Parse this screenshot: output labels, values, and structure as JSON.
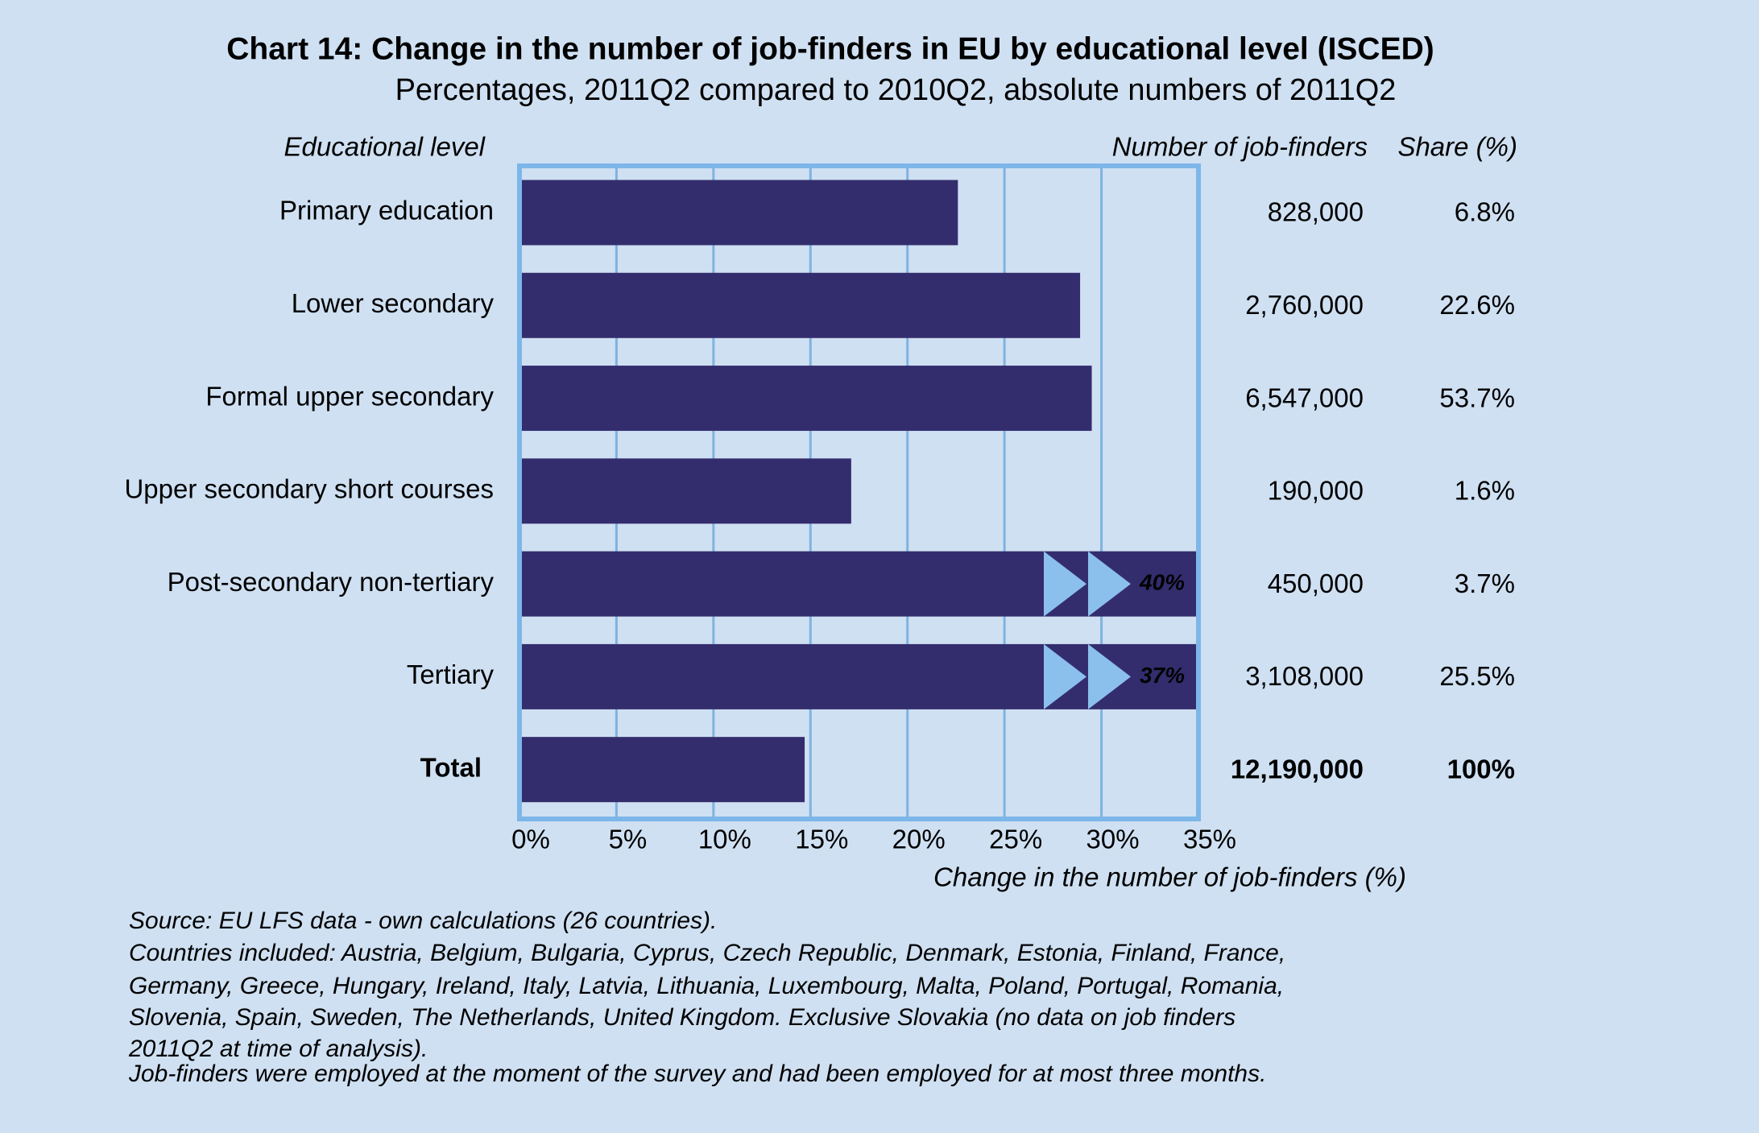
{
  "chart_data": {
    "type": "bar",
    "orientation": "horizontal",
    "title": "Chart 14: Change in the number of job-finders in EU by educational level (ISCED)",
    "subtitle": "Percentages, 2011Q2 compared to 2010Q2, absolute numbers of 2011Q2",
    "category_header": "Educational level",
    "categories": [
      "Primary education",
      "Lower secondary",
      "Formal upper secondary",
      "Upper secondary short courses",
      "Post-secondary non-tertiary",
      "Tertiary",
      "Total"
    ],
    "values": [
      22.6,
      28.9,
      29.5,
      17.1,
      40,
      37,
      14.7
    ],
    "value_labels": [
      null,
      null,
      null,
      null,
      "40%",
      "37%",
      null
    ],
    "color": "#332d6e",
    "xlabel": "Change in the number of job-finders (%)",
    "xlim": [
      0,
      35
    ],
    "xticks": [
      {
        "value": 0,
        "label": "0%"
      },
      {
        "value": 5,
        "label": "5%"
      },
      {
        "value": 10,
        "label": "10%"
      },
      {
        "value": 15,
        "label": "15%"
      },
      {
        "value": 20,
        "label": "20%"
      },
      {
        "value": 25,
        "label": "25%"
      },
      {
        "value": 30,
        "label": "30%"
      },
      {
        "value": 35,
        "label": "35%"
      }
    ],
    "grid": true,
    "columns": [
      {
        "header": "Number of job-finders",
        "values": [
          "828,000",
          "2,760,000",
          "6,547,000",
          "190,000",
          "450,000",
          "3,108,000",
          "12,190,000"
        ]
      },
      {
        "header": "Share (%)",
        "values": [
          "6.8%",
          "22.6%",
          "53.7%",
          "1.6%",
          "3.7%",
          "25.5%",
          "100%"
        ]
      }
    ],
    "notes": [
      "Source: EU LFS data - own calculations (26 countries).",
      "Countries included: Austria, Belgium, Bulgaria, Cyprus, Czech Republic, Denmark, Estonia, Finland, France,",
      "Germany, Greece, Hungary, Ireland, Italy, Latvia, Lithuania, Luxembourg, Malta, Poland, Portugal, Romania,",
      "Slovenia, Spain, Sweden, The Netherlands, United Kingdom. Exclusive Slovakia (no data on job finders",
      "2011Q2 at time of analysis).",
      "Job-finders were employed at the moment of the survey and had been employed for at most three months."
    ]
  }
}
